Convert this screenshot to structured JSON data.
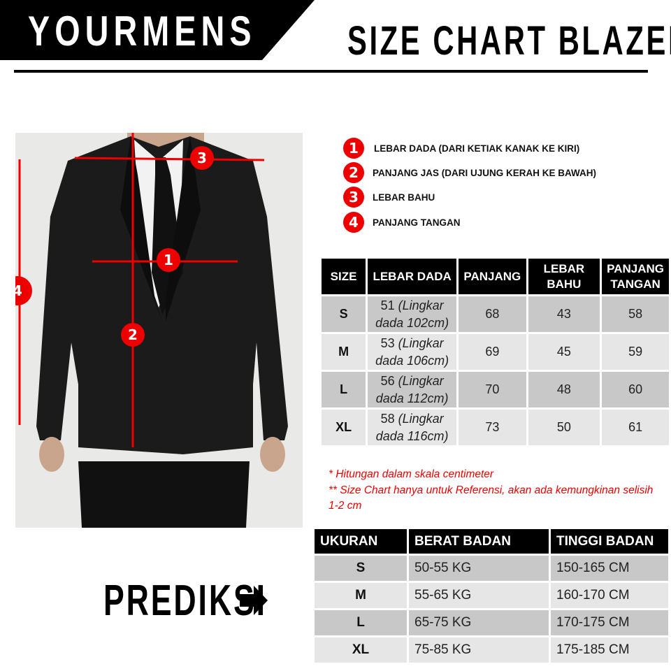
{
  "header": {
    "brand": "YOURMENS",
    "title": "SIZE CHART BLAZER"
  },
  "colors": {
    "accent": "#e00000",
    "header_bg": "#000000",
    "row_dark": "#c8c8c8",
    "row_light": "#e6e6e6"
  },
  "photo": {
    "markers": [
      "1",
      "2",
      "3",
      "4"
    ]
  },
  "legend": [
    {
      "num": "1",
      "label": "LEBAR DADA  (DARI KETIAK KANAK KE KIRI)"
    },
    {
      "num": "2",
      "label": "PANJANG JAS (DARI UJUNG KERAH KE BAWAH)"
    },
    {
      "num": "3",
      "label": "LEBAR BAHU"
    },
    {
      "num": "4",
      "label": "PANJANG TANGAN"
    }
  ],
  "size_table": {
    "headers": [
      "SIZE",
      "LEBAR DADA",
      "PANJANG",
      "LEBAR BAHU",
      "PANJANG TANGAN"
    ],
    "rows": [
      {
        "size": "S",
        "dada": "51",
        "dada_note": "(Lingkar dada 102cm)",
        "panjang": "68",
        "bahu": "43",
        "tangan": "58"
      },
      {
        "size": "M",
        "dada": "53",
        "dada_note": "(Lingkar dada 106cm)",
        "panjang": "69",
        "bahu": "45",
        "tangan": "59"
      },
      {
        "size": "L",
        "dada": "56",
        "dada_note": "(Lingkar dada 112cm)",
        "panjang": "70",
        "bahu": "48",
        "tangan": "60"
      },
      {
        "size": "XL",
        "dada": "58",
        "dada_note": "(Lingkar dada 116cm)",
        "panjang": "73",
        "bahu": "50",
        "tangan": "61"
      }
    ]
  },
  "notes": [
    "* Hitungan dalam skala centimeter",
    "** Size Chart hanya untuk Referensi, akan ada kemungkinan selisih 1-2 cm"
  ],
  "prediction": {
    "label": "PREDIKSI",
    "headers": [
      "UKURAN",
      "BERAT BADAN",
      "TINGGI BADAN"
    ],
    "rows": [
      {
        "size": "S",
        "berat": "50-55 KG",
        "tinggi": "150-165 CM"
      },
      {
        "size": "M",
        "berat": "55-65 KG",
        "tinggi": "160-170 CM"
      },
      {
        "size": "L",
        "berat": "65-75 KG",
        "tinggi": "170-175 CM"
      },
      {
        "size": "XL",
        "berat": "75-85 KG",
        "tinggi": "175-185 CM"
      }
    ]
  }
}
